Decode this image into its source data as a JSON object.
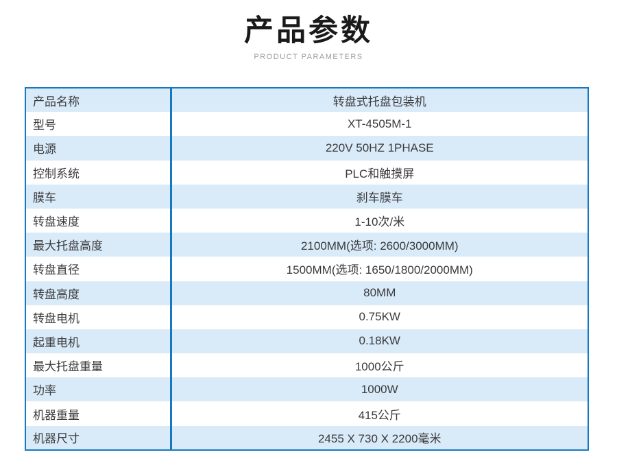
{
  "header": {
    "title": "产品参数",
    "subtitle": "PRODUCT PARAMETERS"
  },
  "colors": {
    "accent_border": "#1778c2",
    "row_alt_bg": "#d9eaf9",
    "row_plain_bg": "#ffffff",
    "title_color": "#1a1a1a",
    "subtitle_color": "#9b9b9b",
    "text_color": "#3a3a3a"
  },
  "table": {
    "rows": [
      {
        "label": "产品名称",
        "value": "转盘式托盘包装机"
      },
      {
        "label": "型号",
        "value": "XT-4505M-1"
      },
      {
        "label": "电源",
        "value": "220V 50HZ 1PHASE"
      },
      {
        "label": "控制系统",
        "value": "PLC和触摸屏"
      },
      {
        "label": "膜车",
        "value": "刹车膜车"
      },
      {
        "label": "转盘速度",
        "value": "1-10次/米"
      },
      {
        "label": "最大托盘高度",
        "value": "2100MM(选项: 2600/3000MM)"
      },
      {
        "label": "转盘直径",
        "value": "1500MM(选项: 1650/1800/2000MM)"
      },
      {
        "label": "转盘高度",
        "value": "80MM"
      },
      {
        "label": "转盘电机",
        "value": "0.75KW"
      },
      {
        "label": "起重电机",
        "value": "0.18KW"
      },
      {
        "label": "最大托盘重量",
        "value": "1000公斤"
      },
      {
        "label": "功率",
        "value": "1000W"
      },
      {
        "label": "机器重量",
        "value": "415公斤"
      },
      {
        "label": "机器尺寸",
        "value": "2455 X 730 X 2200毫米"
      }
    ]
  }
}
